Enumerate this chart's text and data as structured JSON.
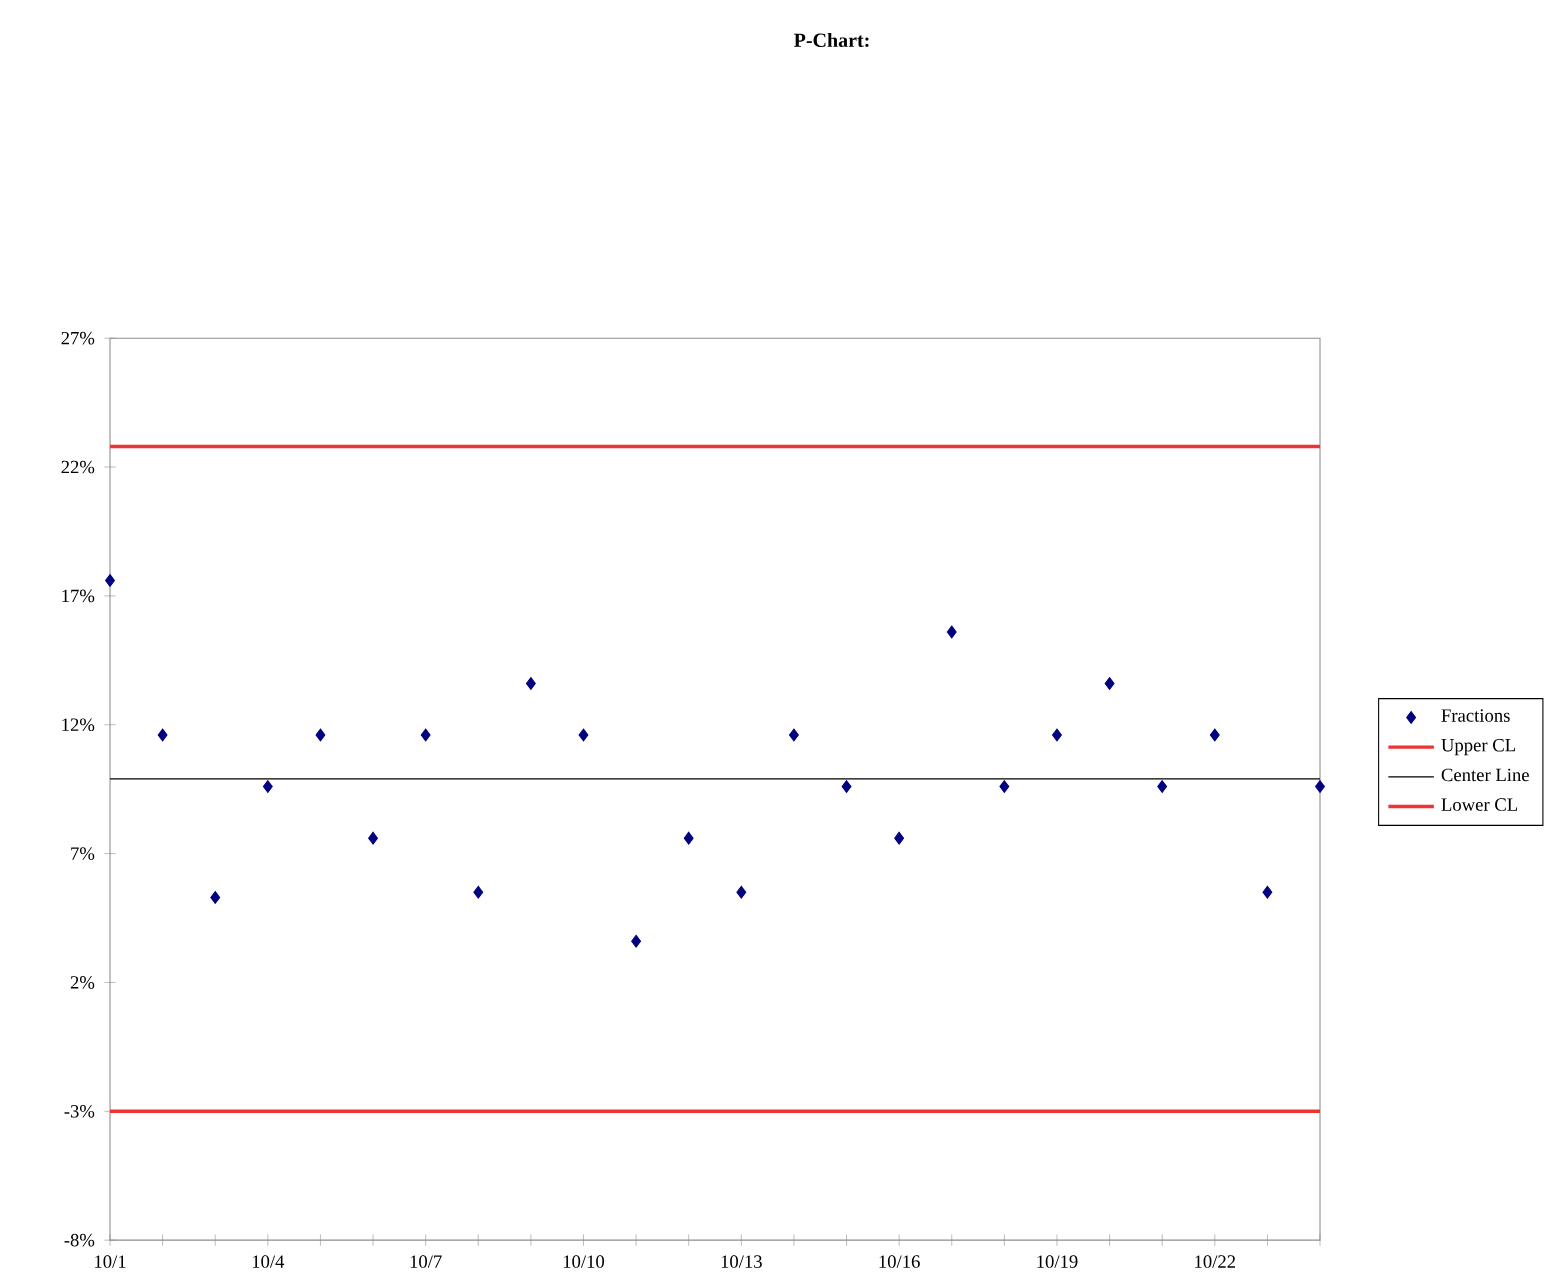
{
  "chart_data": {
    "type": "scatter",
    "title": "P-Chart:",
    "categories": [
      "10/1",
      null,
      null,
      "10/4",
      null,
      null,
      "10/7",
      null,
      null,
      "10/10",
      null,
      null,
      "10/13",
      null,
      null,
      "10/16",
      null,
      null,
      "10/19",
      null,
      null,
      "10/22",
      null,
      null
    ],
    "series": [
      {
        "name": "Fractions",
        "color": "#000080",
        "values": [
          17.6,
          11.6,
          5.3,
          9.6,
          11.6,
          7.6,
          11.6,
          5.5,
          13.6,
          11.6,
          3.6,
          7.6,
          5.5,
          11.6,
          9.6,
          7.6,
          15.6,
          9.6,
          11.6,
          13.6,
          9.6,
          11.6,
          5.5,
          9.6
        ]
      }
    ],
    "marker": "diamond",
    "ylim": [
      -8,
      27
    ],
    "yticks": [
      {
        "value": -8,
        "label": "-8%"
      },
      {
        "value": -3,
        "label": "-3%"
      },
      {
        "value": 2,
        "label": "2%"
      },
      {
        "value": 7,
        "label": "7%"
      },
      {
        "value": 12,
        "label": "12%"
      },
      {
        "value": 17,
        "label": "17%"
      },
      {
        "value": 22,
        "label": "22%"
      },
      {
        "value": 27,
        "label": "27%"
      }
    ],
    "ref_lines": [
      {
        "axis": "y",
        "value": 22.8,
        "label": "Upper CL",
        "color": "#ee3333"
      },
      {
        "axis": "y",
        "value": 9.9,
        "label": "Center Line",
        "color": "#000000"
      },
      {
        "axis": "y",
        "value": -3.0,
        "label": "Lower CL",
        "color": "#ee3333"
      }
    ],
    "legend": "right"
  }
}
